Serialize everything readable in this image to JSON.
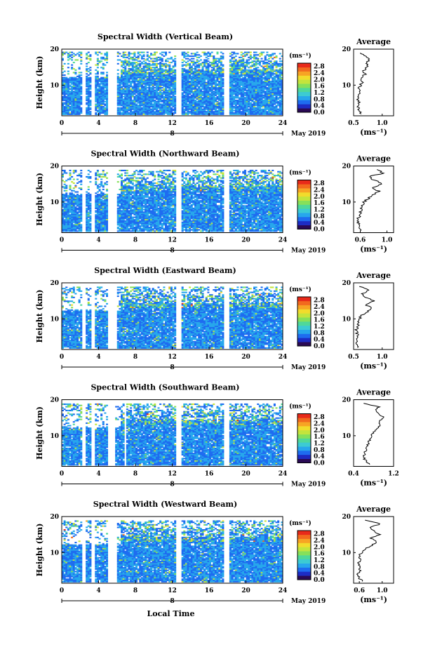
{
  "x_axis_label": "Local Time",
  "date_label": "May 2019",
  "day_marker": "8",
  "colorbar": {
    "unit_label": "(ms⁻¹)",
    "ticks": [
      "0.0",
      "0.4",
      "0.8",
      "1.2",
      "1.6",
      "2.0",
      "2.4",
      "2.8"
    ],
    "colors": [
      "#2a0a55",
      "#1d2cc4",
      "#1e6cf0",
      "#27a7ec",
      "#3ccbd3",
      "#4fd89a",
      "#86e05a",
      "#c4e43c",
      "#f2dc2c",
      "#f7a424",
      "#f26a1e",
      "#e82a1a"
    ]
  },
  "chart_data": [
    {
      "type": "heatmap",
      "title": "Spectral Width (Vertical Beam)",
      "ylabel": "Height (km)",
      "xlim": [
        0,
        24
      ],
      "ylim": [
        1.5,
        20
      ],
      "x_ticks": [
        0,
        4,
        8,
        12,
        16,
        20,
        24
      ],
      "y_ticks": [
        10,
        20
      ],
      "colorbar_range": [
        0.0,
        3.0
      ],
      "gaps_hours": [
        [
          2.3,
          2.5
        ],
        [
          3.3,
          3.5
        ],
        [
          5.0,
          5.9
        ],
        [
          12.5,
          12.9
        ],
        [
          17.7,
          18.1
        ]
      ],
      "data_top_km": 19.5,
      "profile": {
        "title": "Average",
        "xlabel": "(ms⁻¹)",
        "xlim": [
          0.5,
          1.2
        ],
        "x_ticks": [
          "0.5",
          "1.0"
        ],
        "y_ticks": [
          10,
          20
        ],
        "heights_km": [
          2,
          3,
          4,
          5,
          6,
          7,
          8,
          9,
          10,
          11,
          12,
          13,
          14,
          15,
          16,
          17,
          18,
          19
        ],
        "values": [
          0.62,
          0.6,
          0.58,
          0.59,
          0.58,
          0.57,
          0.6,
          0.59,
          0.62,
          0.66,
          0.62,
          0.7,
          0.68,
          0.74,
          0.72,
          0.78,
          0.7,
          0.62
        ]
      }
    },
    {
      "type": "heatmap",
      "title": "Spectral Width (Northward Beam)",
      "ylabel": "Height (km)",
      "xlim": [
        0,
        24
      ],
      "ylim": [
        1.5,
        20
      ],
      "x_ticks": [
        0,
        4,
        8,
        12,
        16,
        20,
        24
      ],
      "y_ticks": [
        10,
        20
      ],
      "colorbar_range": [
        0.0,
        3.0
      ],
      "gaps_hours": [
        [
          2.3,
          2.5
        ],
        [
          3.3,
          3.5
        ],
        [
          5.0,
          5.9
        ],
        [
          12.5,
          12.9
        ],
        [
          17.7,
          18.1
        ]
      ],
      "data_top_km": 19.0,
      "profile": {
        "title": "Average",
        "xlabel": "(ms⁻¹)",
        "xlim": [
          0.5,
          1.1
        ],
        "x_ticks": [
          "0.6",
          "1.0"
        ],
        "y_ticks": [
          10,
          20
        ],
        "heights_km": [
          2,
          3,
          4,
          5,
          6,
          7,
          8,
          9,
          10,
          11,
          12,
          13,
          14,
          15,
          16,
          17,
          18,
          19
        ],
        "values": [
          0.62,
          0.58,
          0.57,
          0.56,
          0.58,
          0.6,
          0.62,
          0.63,
          0.66,
          0.72,
          0.8,
          0.88,
          0.78,
          0.92,
          0.82,
          0.72,
          0.95,
          0.85
        ]
      }
    },
    {
      "type": "heatmap",
      "title": "Spectral Width (Eastward Beam)",
      "ylabel": "Height (km)",
      "xlim": [
        0,
        24
      ],
      "ylim": [
        1.5,
        20
      ],
      "x_ticks": [
        0,
        4,
        8,
        12,
        16,
        20,
        24
      ],
      "y_ticks": [
        10,
        20
      ],
      "colorbar_range": [
        0.0,
        3.0
      ],
      "gaps_hours": [
        [
          2.3,
          2.5
        ],
        [
          3.3,
          3.5
        ],
        [
          5.0,
          5.9
        ],
        [
          12.5,
          12.9
        ],
        [
          17.7,
          18.1
        ]
      ],
      "data_top_km": 19.0,
      "profile": {
        "title": "Average",
        "xlabel": "(ms⁻¹)",
        "xlim": [
          0.5,
          1.2
        ],
        "x_ticks": [
          "0.5",
          "1.0"
        ],
        "y_ticks": [
          10,
          20
        ],
        "heights_km": [
          2,
          3,
          4,
          5,
          6,
          7,
          8,
          9,
          10,
          11,
          12,
          13,
          14,
          15,
          16,
          17,
          18,
          19
        ],
        "values": [
          0.58,
          0.56,
          0.55,
          0.57,
          0.56,
          0.55,
          0.58,
          0.57,
          0.6,
          0.64,
          0.75,
          0.82,
          0.7,
          0.85,
          0.72,
          0.65,
          0.78,
          0.6
        ]
      }
    },
    {
      "type": "heatmap",
      "title": "Spectral Width (Southward Beam)",
      "ylabel": "Height (km)",
      "xlim": [
        0,
        24
      ],
      "ylim": [
        1.5,
        20
      ],
      "x_ticks": [
        0,
        4,
        8,
        12,
        16,
        20,
        24
      ],
      "y_ticks": [
        10,
        20
      ],
      "colorbar_range": [
        0.0,
        3.0
      ],
      "gaps_hours": [
        [
          2.3,
          2.5
        ],
        [
          3.3,
          3.5
        ],
        [
          5.0,
          5.7
        ],
        [
          6.8,
          7.0
        ],
        [
          12.5,
          12.9
        ],
        [
          17.7,
          18.1
        ]
      ],
      "data_top_km": 19.0,
      "profile": {
        "title": "Average",
        "xlabel": "(ms⁻¹)",
        "xlim": [
          0.4,
          1.2
        ],
        "x_ticks": [
          "0.4",
          "1.2"
        ],
        "y_ticks": [
          10,
          20
        ],
        "heights_km": [
          2,
          3,
          4,
          5,
          6,
          7,
          8,
          9,
          10,
          11,
          12,
          13,
          14,
          15,
          16,
          17,
          18,
          19
        ],
        "values": [
          0.72,
          0.64,
          0.6,
          0.62,
          0.64,
          0.66,
          0.7,
          0.72,
          0.75,
          0.8,
          0.86,
          0.95,
          0.9,
          1.0,
          0.92,
          0.85,
          0.9,
          0.6
        ]
      }
    },
    {
      "type": "heatmap",
      "title": "Spectral Width (Westward Beam)",
      "ylabel": "Height (km)",
      "xlim": [
        0,
        24
      ],
      "ylim": [
        1.5,
        20
      ],
      "x_ticks": [
        0,
        4,
        8,
        12,
        16,
        20,
        24
      ],
      "y_ticks": [
        10,
        20
      ],
      "colorbar_range": [
        0.0,
        3.0
      ],
      "gaps_hours": [
        [
          2.3,
          2.5
        ],
        [
          3.3,
          3.5
        ],
        [
          5.0,
          5.9
        ],
        [
          12.5,
          12.9
        ],
        [
          17.7,
          18.1
        ]
      ],
      "data_top_km": 19.0,
      "profile": {
        "title": "Average",
        "xlabel": "(ms⁻¹)",
        "xlim": [
          0.5,
          1.2
        ],
        "x_ticks": [
          "0.6",
          "1.0"
        ],
        "y_ticks": [
          10,
          20
        ],
        "heights_km": [
          2,
          3,
          4,
          5,
          6,
          7,
          8,
          9,
          10,
          11,
          12,
          13,
          14,
          15,
          16,
          17,
          18,
          19
        ],
        "values": [
          0.65,
          0.6,
          0.58,
          0.62,
          0.6,
          0.58,
          0.62,
          0.6,
          0.64,
          0.7,
          0.82,
          0.9,
          0.8,
          0.95,
          0.86,
          0.78,
          0.98,
          0.7
        ]
      }
    }
  ]
}
